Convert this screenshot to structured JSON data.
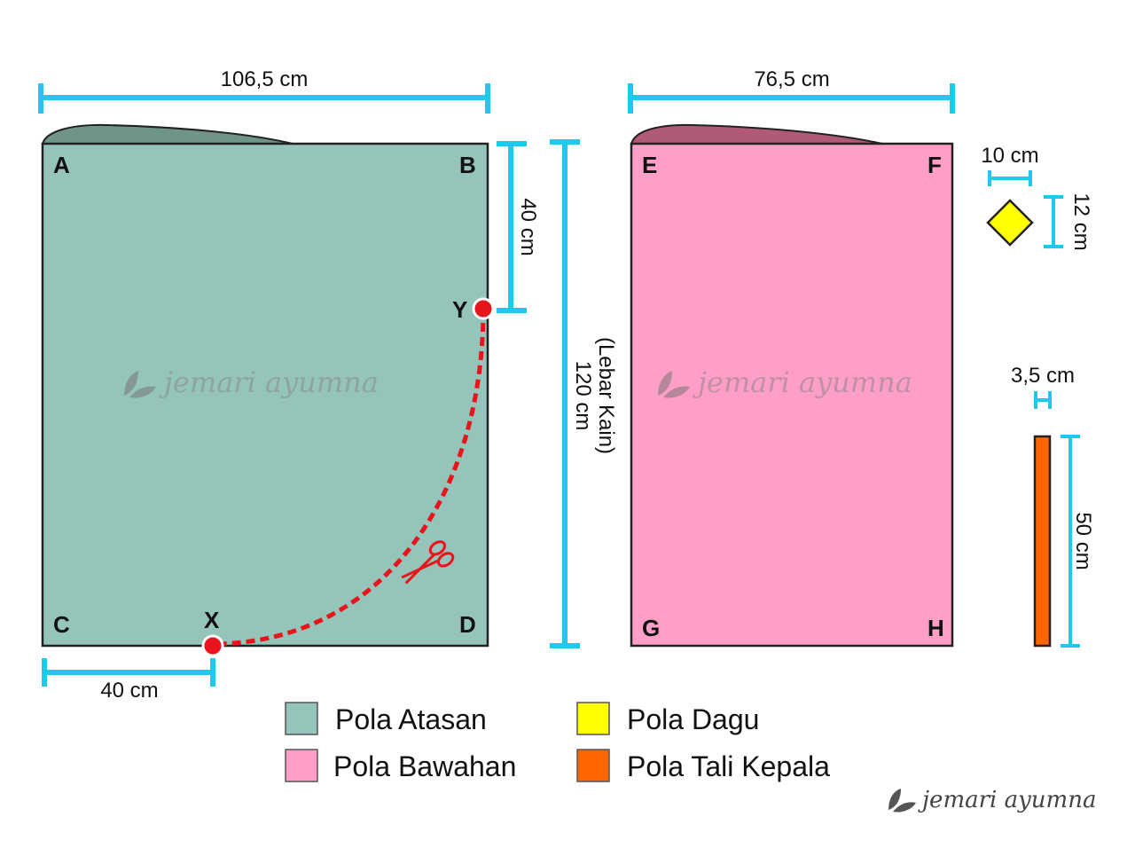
{
  "colors": {
    "atasan": "#95c4ba",
    "atasan_fold": "#6f9488",
    "bawahan": "#ff9ec6",
    "bawahan_fold": "#b05a78",
    "dagu": "#ffff00",
    "tali": "#ff6600",
    "dimension": "#1ec8ee",
    "cut_line": "#e8141b",
    "point": "#e8141b",
    "outline": "#222222",
    "watermark": "#8a8a8a"
  },
  "atasan": {
    "width_label": "106,5 cm",
    "corners": {
      "a": "A",
      "b": "B",
      "c": "C",
      "d": "D"
    },
    "point_y": "Y",
    "point_x": "X",
    "y_offset_label": "40 cm",
    "x_offset_label": "40 cm",
    "icon": "scissors-icon"
  },
  "fabric_width": {
    "label_top": "(Lebar Kain)",
    "label_bottom": "120 cm"
  },
  "bawahan": {
    "width_label": "76,5 cm",
    "corners": {
      "e": "E",
      "f": "F",
      "g": "G",
      "h": "H"
    }
  },
  "dagu": {
    "width_label": "10 cm",
    "height_label": "12 cm"
  },
  "tali": {
    "width_label": "3,5 cm",
    "height_label": "50 cm"
  },
  "legend": [
    {
      "label": "Pola Atasan",
      "swatch": "#95c4ba"
    },
    {
      "label": "Pola Bawahan",
      "swatch": "#ff9ec6"
    },
    {
      "label": "Pola Dagu",
      "swatch": "#ffff00"
    },
    {
      "label": "Pola Tali Kepala",
      "swatch": "#ff6600"
    }
  ],
  "watermark": {
    "text": "jemari ayumna",
    "icon": "leaf-icon"
  }
}
